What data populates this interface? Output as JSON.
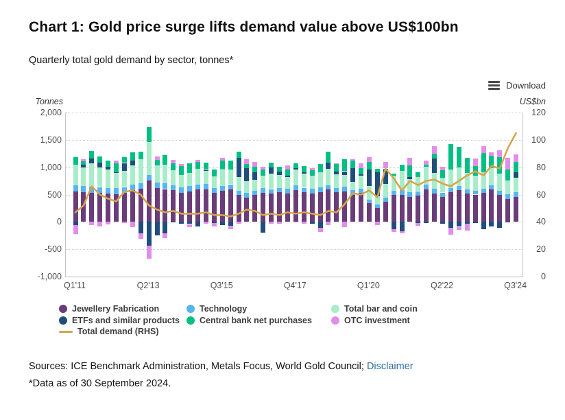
{
  "header": {
    "title": "Chart 1: Gold price surge lifts demand value above US$100bn",
    "subtitle": "Quarterly total gold demand by sector, tonnes*"
  },
  "toolbar": {
    "download_label": "Download"
  },
  "axes": {
    "left_unit": "Tonnes",
    "right_unit": "US$bn",
    "left_ticks": [
      {
        "label": "2,000",
        "value": 2000
      },
      {
        "label": "1,500",
        "value": 1500
      },
      {
        "label": "1,000",
        "value": 1000
      },
      {
        "label": "500",
        "value": 500
      },
      {
        "label": "0",
        "value": 0
      },
      {
        "label": "-500",
        "value": -500
      },
      {
        "label": "-1,000",
        "value": -1000
      }
    ],
    "right_ticks": [
      {
        "label": "120",
        "value": 120
      },
      {
        "label": "100",
        "value": 100
      },
      {
        "label": "80",
        "value": 80
      },
      {
        "label": "60",
        "value": 60
      },
      {
        "label": "40",
        "value": 40
      },
      {
        "label": "20",
        "value": 20
      },
      {
        "label": "0",
        "value": 0
      }
    ],
    "gridline_values": [
      2000,
      1500,
      1000,
      500,
      0,
      -500
    ],
    "x_ticks": [
      {
        "label": "Q1'11",
        "index": 0
      },
      {
        "label": "Q2'13",
        "index": 9
      },
      {
        "label": "Q3'15",
        "index": 18
      },
      {
        "label": "Q4'17",
        "index": 27
      },
      {
        "label": "Q1'20",
        "index": 36
      },
      {
        "label": "Q2'22",
        "index": 45
      },
      {
        "label": "Q3'24",
        "index": 54
      }
    ]
  },
  "legend": [
    {
      "label": "Jewellery Fabrication",
      "color": "#6a3d79",
      "marker": "dot",
      "col": 0,
      "row": 0
    },
    {
      "label": "ETFs and similar products",
      "color": "#1f4e7c",
      "marker": "dot",
      "col": 0,
      "row": 1
    },
    {
      "label": "Total demand (RHS)",
      "color": "#d6a44e",
      "marker": "line",
      "col": 0,
      "row": 2
    },
    {
      "label": "Technology",
      "color": "#56b5f2",
      "marker": "dot",
      "col": 1,
      "row": 0
    },
    {
      "label": "Central bank net purchases",
      "color": "#00bf85",
      "marker": "dot",
      "col": 1,
      "row": 1
    },
    {
      "label": "Total bar and coin",
      "color": "#a8edca",
      "marker": "dot",
      "col": 2,
      "row": 0
    },
    {
      "label": "OTC investment",
      "color": "#e18eeb",
      "marker": "dot",
      "col": 2,
      "row": 1
    }
  ],
  "chart_data": {
    "type": "bar",
    "subtype": "stacked-columns-with-line-overlay",
    "title": "Chart 1: Gold price surge lifts demand value above US$100bn",
    "xlabel": "",
    "ylabel_left": "Tonnes",
    "ylabel_right": "US$bn",
    "ylim_left": [
      -1000,
      2000
    ],
    "ylim_right": [
      0,
      120
    ],
    "grid": "horizontal-dotted",
    "legend_position": "bottom",
    "categories": [
      "Q1'11",
      "Q2'11",
      "Q3'11",
      "Q4'11",
      "Q1'12",
      "Q2'12",
      "Q3'12",
      "Q4'12",
      "Q1'13",
      "Q2'13",
      "Q3'13",
      "Q4'13",
      "Q1'14",
      "Q2'14",
      "Q3'14",
      "Q4'14",
      "Q1'15",
      "Q2'15",
      "Q3'15",
      "Q4'15",
      "Q1'16",
      "Q2'16",
      "Q3'16",
      "Q4'16",
      "Q1'17",
      "Q2'17",
      "Q3'17",
      "Q4'17",
      "Q1'18",
      "Q2'18",
      "Q3'18",
      "Q4'18",
      "Q1'19",
      "Q2'19",
      "Q3'19",
      "Q4'19",
      "Q1'20",
      "Q2'20",
      "Q3'20",
      "Q4'20",
      "Q1'21",
      "Q2'21",
      "Q3'21",
      "Q4'21",
      "Q1'22",
      "Q2'22",
      "Q3'22",
      "Q4'22",
      "Q1'23",
      "Q2'23",
      "Q3'23",
      "Q4'23",
      "Q1'24",
      "Q2'24",
      "Q3'24"
    ],
    "series": [
      {
        "key": "jewellery",
        "name": "Jewellery Fabrication",
        "color": "#6a3d79",
        "unit": "tonnes",
        "values": [
          560,
          540,
          530,
          530,
          520,
          510,
          530,
          580,
          610,
          760,
          620,
          600,
          580,
          530,
          560,
          590,
          600,
          530,
          570,
          600,
          490,
          450,
          490,
          530,
          520,
          540,
          520,
          580,
          540,
          520,
          540,
          590,
          540,
          560,
          500,
          530,
          340,
          250,
          370,
          490,
          500,
          460,
          480,
          600,
          520,
          460,
          540,
          580,
          520,
          500,
          530,
          590,
          490,
          420,
          460
        ]
      },
      {
        "key": "technology",
        "name": "Technology",
        "color": "#56b5f2",
        "unit": "tonnes",
        "values": [
          115,
          118,
          117,
          108,
          105,
          105,
          108,
          105,
          100,
          103,
          103,
          102,
          95,
          97,
          98,
          95,
          90,
          90,
          92,
          88,
          80,
          81,
          83,
          84,
          80,
          82,
          84,
          86,
          86,
          85,
          87,
          84,
          81,
          81,
          82,
          81,
          71,
          66,
          77,
          84,
          81,
          80,
          83,
          86,
          82,
          78,
          77,
          72,
          70,
          70,
          75,
          80,
          79,
          81,
          83
        ]
      },
      {
        "key": "bar_and_coin",
        "name": "Total bar and coin",
        "color": "#a8edca",
        "unit": "tonnes",
        "values": [
          370,
          335,
          430,
          355,
          330,
          290,
          300,
          345,
          440,
          600,
          315,
          340,
          270,
          235,
          240,
          290,
          250,
          215,
          290,
          265,
          255,
          215,
          195,
          235,
          285,
          240,
          220,
          290,
          255,
          245,
          280,
          300,
          255,
          220,
          150,
          240,
          250,
          155,
          245,
          270,
          350,
          245,
          260,
          320,
          290,
          250,
          340,
          340,
          300,
          275,
          300,
          315,
          310,
          260,
          270
        ]
      },
      {
        "key": "etfs",
        "name": "ETFs and similar products",
        "color": "#1f4e7c",
        "unit": "tonnes",
        "values": [
          -55,
          50,
          80,
          90,
          50,
          5,
          140,
          90,
          -210,
          -440,
          -250,
          -210,
          -5,
          -40,
          -40,
          -90,
          25,
          -25,
          -65,
          -70,
          345,
          235,
          145,
          -195,
          110,
          55,
          20,
          30,
          30,
          -35,
          -105,
          110,
          40,
          65,
          255,
          25,
          300,
          435,
          275,
          -130,
          -175,
          40,
          -25,
          -20,
          270,
          -40,
          -105,
          -90,
          -30,
          -20,
          -140,
          -90,
          -115,
          -5,
          95
        ]
      },
      {
        "key": "central_banks",
        "name": "Central bank net purchases",
        "color": "#00bf85",
        "unit": "tonnes",
        "values": [
          140,
          70,
          145,
          115,
          115,
          165,
          110,
          150,
          135,
          280,
          100,
          185,
          125,
          160,
          175,
          125,
          115,
          130,
          170,
          170,
          110,
          80,
          95,
          105,
          85,
          90,
          110,
          90,
          115,
          90,
          150,
          195,
          155,
          225,
          140,
          110,
          140,
          65,
          10,
          45,
          115,
          210,
          90,
          40,
          85,
          160,
          460,
          380,
          285,
          175,
          360,
          220,
          300,
          200,
          185
        ]
      },
      {
        "key": "otc",
        "name": "OTC investment",
        "color": "#e18eeb",
        "unit": "tonnes",
        "values": [
          -165,
          40,
          -60,
          -80,
          -45,
          45,
          -25,
          -100,
          -100,
          -230,
          65,
          -85,
          60,
          35,
          -50,
          30,
          -40,
          -60,
          50,
          -70,
          -30,
          85,
          85,
          60,
          -35,
          -40,
          75,
          -15,
          -35,
          45,
          -85,
          -60,
          5,
          -95,
          15,
          80,
          85,
          -60,
          115,
          -55,
          -30,
          135,
          -50,
          70,
          135,
          65,
          -135,
          -60,
          -125,
          140,
          120,
          65,
          135,
          215,
          140
        ]
      }
    ],
    "line_series": {
      "key": "total_demand",
      "name": "Total demand (RHS)",
      "color": "#d6a44e",
      "unit": "US$bn",
      "axis": "right",
      "values": [
        47,
        52,
        66,
        60,
        57,
        55,
        62,
        63,
        60,
        52,
        49,
        47,
        48,
        46,
        46,
        46,
        47,
        45,
        45,
        44,
        46,
        49,
        48,
        45,
        46,
        45,
        47,
        46,
        47,
        46,
        45,
        48,
        47,
        53,
        61,
        60,
        63,
        58,
        79,
        72,
        63,
        70,
        67,
        70,
        71,
        68,
        66,
        70,
        74,
        77,
        74,
        81,
        79,
        94,
        105
      ]
    }
  },
  "footer": {
    "sources_prefix": "Sources: ICE Benchmark Administration, Metals Focus, World Gold Council; ",
    "disclaimer_label": "Disclaimer",
    "footnote": "*Data as of 30 September 2024."
  }
}
